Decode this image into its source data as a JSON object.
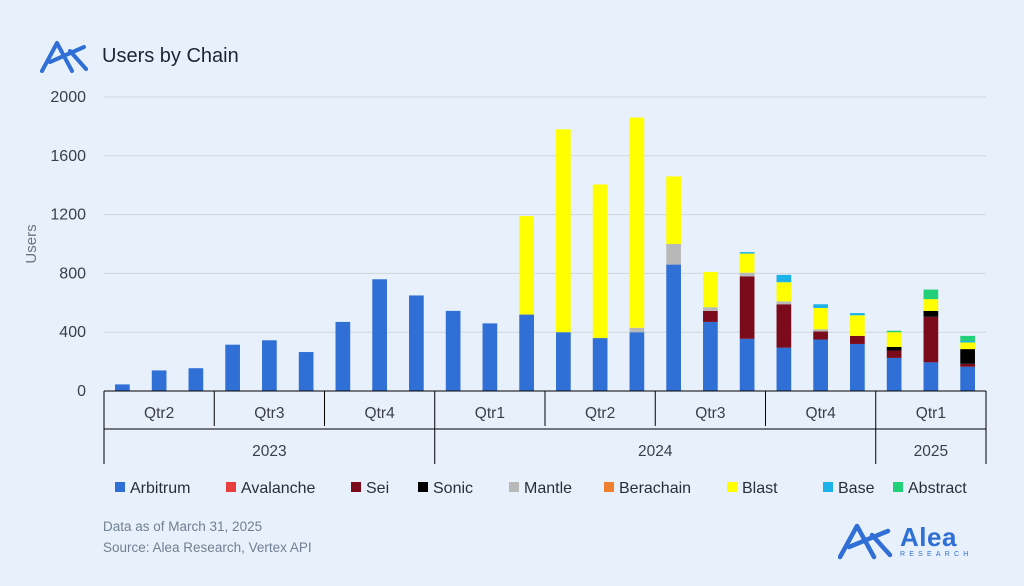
{
  "header": {
    "title": "Users by Chain",
    "logo_icon": "alea-logo-icon"
  },
  "footer": {
    "data_note": "Data as of March 31, 2025",
    "source": "Source: Alea Research, Vertex API"
  },
  "brand": {
    "name": "Alea",
    "subtitle": "RESEARCH"
  },
  "chart_data": {
    "type": "bar",
    "stacked": true,
    "title": "Users by Chain",
    "xlabel": "",
    "ylabel": "Users",
    "ylim": [
      0,
      2000
    ],
    "yticks": [
      0,
      400,
      800,
      1200,
      1600,
      2000
    ],
    "grid": true,
    "legend_position": "bottom",
    "quarters": [
      {
        "label": "Qtr2",
        "year": "2023",
        "bars": 3
      },
      {
        "label": "Qtr3",
        "year": "2023",
        "bars": 3
      },
      {
        "label": "Qtr4",
        "year": "2023",
        "bars": 3
      },
      {
        "label": "Qtr1",
        "year": "2024",
        "bars": 3
      },
      {
        "label": "Qtr2",
        "year": "2024",
        "bars": 3
      },
      {
        "label": "Qtr3",
        "year": "2024",
        "bars": 3
      },
      {
        "label": "Qtr4",
        "year": "2024",
        "bars": 3
      },
      {
        "label": "Qtr1",
        "year": "2025",
        "bars": 3
      }
    ],
    "years": [
      {
        "label": "2023",
        "quarters": 3
      },
      {
        "label": "2024",
        "quarters": 4
      },
      {
        "label": "2025",
        "quarters": 1
      }
    ],
    "series": [
      {
        "name": "Arbitrum",
        "color": "#2f6fd6",
        "values": [
          45,
          140,
          155,
          315,
          345,
          265,
          470,
          760,
          650,
          545,
          460,
          520,
          400,
          360,
          400,
          860,
          470,
          355,
          295,
          350,
          320,
          225,
          195,
          165
        ]
      },
      {
        "name": "Avalanche",
        "color": "#e83e3e",
        "values": [
          0,
          0,
          0,
          0,
          0,
          0,
          0,
          0,
          0,
          0,
          0,
          0,
          0,
          0,
          0,
          0,
          0,
          0,
          0,
          0,
          0,
          0,
          0,
          0
        ]
      },
      {
        "name": "Sei",
        "color": "#7b0a1a",
        "values": [
          0,
          0,
          0,
          0,
          0,
          0,
          0,
          0,
          0,
          0,
          0,
          0,
          0,
          0,
          0,
          0,
          75,
          425,
          295,
          55,
          55,
          50,
          310,
          20
        ]
      },
      {
        "name": "Sonic",
        "color": "#000000",
        "values": [
          0,
          0,
          0,
          0,
          0,
          0,
          0,
          0,
          0,
          0,
          0,
          0,
          0,
          0,
          0,
          0,
          0,
          0,
          0,
          0,
          0,
          25,
          40,
          100
        ]
      },
      {
        "name": "Mantle",
        "color": "#b8b8b8",
        "values": [
          0,
          0,
          0,
          0,
          0,
          0,
          0,
          0,
          0,
          0,
          0,
          0,
          0,
          0,
          30,
          140,
          25,
          25,
          20,
          15,
          0,
          0,
          0,
          0
        ]
      },
      {
        "name": "Berachain",
        "color": "#f08030",
        "values": [
          0,
          0,
          0,
          0,
          0,
          0,
          0,
          0,
          0,
          0,
          0,
          0,
          0,
          0,
          0,
          0,
          0,
          0,
          0,
          0,
          0,
          0,
          0,
          0
        ]
      },
      {
        "name": "Blast",
        "color": "#ffff00",
        "values": [
          0,
          0,
          0,
          0,
          0,
          0,
          0,
          0,
          0,
          0,
          0,
          670,
          1380,
          1045,
          1430,
          460,
          240,
          130,
          130,
          145,
          140,
          100,
          80,
          45
        ]
      },
      {
        "name": "Base",
        "color": "#1ab2e8",
        "values": [
          0,
          0,
          0,
          0,
          0,
          0,
          0,
          0,
          0,
          0,
          0,
          0,
          0,
          0,
          0,
          0,
          0,
          10,
          50,
          25,
          15,
          0,
          0,
          10
        ]
      },
      {
        "name": "Abstract",
        "color": "#22d07a",
        "values": [
          0,
          0,
          0,
          0,
          0,
          0,
          0,
          0,
          0,
          0,
          0,
          0,
          0,
          0,
          0,
          0,
          0,
          0,
          0,
          0,
          0,
          10,
          65,
          35
        ]
      }
    ]
  }
}
